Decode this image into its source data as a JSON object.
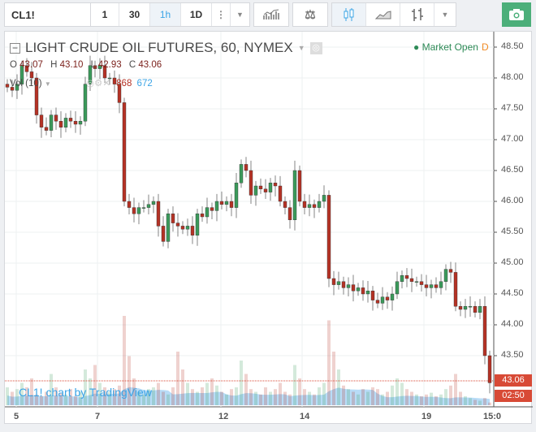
{
  "toolbar": {
    "symbol": "CL1!",
    "intervals": [
      "1",
      "30",
      "1h",
      "1D"
    ],
    "active_interval": "1h",
    "more_icon": "vertical-dots-icon",
    "dropdown_icon": "chevron-down-icon",
    "indicators_icon": "indicators-icon",
    "compare_icon": "scales-icon",
    "chart_types": [
      "candles-icon",
      "area-icon",
      "bars-icon"
    ],
    "snapshot_icon": "camera-icon"
  },
  "chart": {
    "title": "LIGHT CRUDE OIL FUTURES, 60, NYMEX",
    "market_status": "Market Open",
    "market_flag": "D",
    "ohlc": {
      "o_label": "O",
      "o": "43.07",
      "h_label": "H",
      "h": "43.10",
      "l_label": "L",
      "l": "42.93",
      "c_label": "C",
      "c": "43.06"
    },
    "volume": {
      "label": "Vol (10)",
      "value1": "868",
      "value2": "672"
    },
    "watermark": "CL1! chart by TradingView",
    "last_price": "43.06",
    "countdown": "02:50",
    "colors": {
      "up": "#3b9a5b",
      "down": "#b53225",
      "volume_ma": "#a6d3f5",
      "accent": "#3ba4e6"
    }
  },
  "chart_data": {
    "type": "candlestick",
    "y_ticks": [
      "48.50",
      "48.00",
      "47.50",
      "47.00",
      "46.50",
      "46.00",
      "45.50",
      "45.00",
      "44.50",
      "44.00",
      "43.50"
    ],
    "x_ticks": [
      "5",
      "7",
      "12",
      "14",
      "19",
      "15:0"
    ],
    "ylim": [
      43.3,
      48.7
    ],
    "closes": [
      47.85,
      47.8,
      47.9,
      48.2,
      48.1,
      48.0,
      47.4,
      47.2,
      47.15,
      47.4,
      47.3,
      47.2,
      47.35,
      47.3,
      47.25,
      47.3,
      47.9,
      48.2,
      48.15,
      48.2,
      48.0,
      48.0,
      47.9,
      47.6,
      46.0,
      45.9,
      45.8,
      45.9,
      45.9,
      45.95,
      46.0,
      45.6,
      45.35,
      45.8,
      45.65,
      45.6,
      45.55,
      45.6,
      45.45,
      45.8,
      45.75,
      45.9,
      45.85,
      46.0,
      45.95,
      46.0,
      45.9,
      46.3,
      46.6,
      46.5,
      46.1,
      46.25,
      46.2,
      46.15,
      46.3,
      46.25,
      46.0,
      45.9,
      45.7,
      46.5,
      46.0,
      45.9,
      45.95,
      45.9,
      46.0,
      46.1,
      44.75,
      44.65,
      44.7,
      44.6,
      44.65,
      44.55,
      44.6,
      44.5,
      44.55,
      44.4,
      44.35,
      44.45,
      44.4,
      44.5,
      44.7,
      44.8,
      44.75,
      44.7,
      44.7,
      44.65,
      44.6,
      44.65,
      44.6,
      44.7,
      44.9,
      44.85,
      44.3,
      44.25,
      44.3,
      44.3,
      44.2,
      44.3,
      43.5,
      43.06
    ],
    "volume_relative": [
      20,
      15,
      18,
      25,
      20,
      30,
      12,
      10,
      15,
      35,
      20,
      14,
      12,
      18,
      10,
      15,
      40,
      30,
      45,
      25,
      20,
      15,
      18,
      22,
      100,
      55,
      30,
      15,
      12,
      18,
      20,
      25,
      15,
      12,
      20,
      60,
      40,
      25,
      18,
      15,
      20,
      25,
      30,
      22,
      15,
      12,
      18,
      20,
      50,
      35,
      18,
      15,
      12,
      20,
      15,
      18,
      25,
      15,
      12,
      45,
      30,
      18,
      15,
      12,
      20,
      25,
      95,
      60,
      40,
      22,
      18,
      15,
      12,
      18,
      15,
      20,
      18,
      12,
      15,
      22,
      30,
      25,
      18,
      15,
      12,
      10,
      12,
      14,
      10,
      12,
      18,
      22,
      35,
      15,
      10,
      8,
      6,
      5,
      8,
      3
    ]
  }
}
